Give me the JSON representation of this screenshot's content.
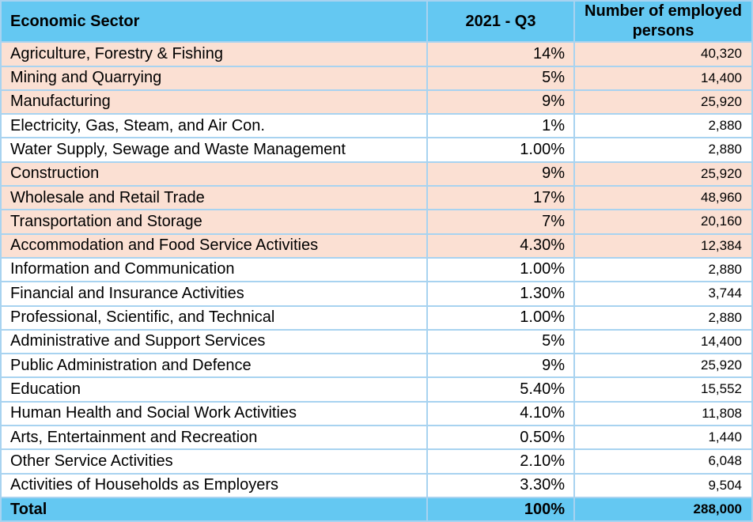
{
  "table": {
    "headers": [
      "Economic Sector",
      "2021 - Q3",
      "Number of employed persons"
    ],
    "rows": [
      {
        "sector": "Agriculture, Forestry & Fishing",
        "share": "14%",
        "employed": "40,320",
        "highlight": true,
        "highlight_count": true
      },
      {
        "sector": "Mining and Quarrying",
        "share": "5%",
        "employed": "14,400",
        "highlight": true,
        "highlight_count": true
      },
      {
        "sector": "Manufacturing",
        "share": "9%",
        "employed": "25,920",
        "highlight": true,
        "highlight_count": true
      },
      {
        "sector": "Electricity, Gas, Steam, and Air Con.",
        "share": "1%",
        "employed": "2,880",
        "highlight": false,
        "highlight_count": false
      },
      {
        "sector": "Water Supply, Sewage and Waste Management",
        "share": "1.00%",
        "employed": "2,880",
        "highlight": false,
        "highlight_count": false
      },
      {
        "sector": "Construction",
        "share": "9%",
        "employed": "25,920",
        "highlight": true,
        "highlight_count": true
      },
      {
        "sector": "Wholesale and Retail Trade",
        "share": "17%",
        "employed": "48,960",
        "highlight": true,
        "highlight_count": true
      },
      {
        "sector": "Transportation and Storage",
        "share": "7%",
        "employed": "20,160",
        "highlight": true,
        "highlight_count": true
      },
      {
        "sector": "Accommodation and Food Service Activities",
        "share": "4.30%",
        "employed": "12,384",
        "highlight": true,
        "highlight_count": true
      },
      {
        "sector": "Information and Communication",
        "share": "1.00%",
        "employed": "2,880",
        "highlight": false,
        "highlight_count": false
      },
      {
        "sector": "Financial and Insurance Activities",
        "share": "1.30%",
        "employed": "3,744",
        "highlight": false,
        "highlight_count": false
      },
      {
        "sector": "Professional, Scientific, and Technical",
        "share": "1.00%",
        "employed": "2,880",
        "highlight": false,
        "highlight_count": false
      },
      {
        "sector": "Administrative and Support Services",
        "share": "5%",
        "employed": "14,400",
        "highlight": false,
        "highlight_count": false
      },
      {
        "sector": "Public Administration and Defence",
        "share": "9%",
        "employed": "25,920",
        "highlight": false,
        "highlight_count": false
      },
      {
        "sector": "Education",
        "share": "5.40%",
        "employed": "15,552",
        "highlight": false,
        "highlight_count": false
      },
      {
        "sector": "Human Health and Social Work Activities",
        "share": "4.10%",
        "employed": "11,808",
        "highlight": false,
        "highlight_count": false
      },
      {
        "sector": "Arts, Entertainment and Recreation",
        "share": "0.50%",
        "employed": "1,440",
        "highlight": false,
        "highlight_count": false
      },
      {
        "sector": "Other Service Activities",
        "share": "2.10%",
        "employed": "6,048",
        "highlight": false,
        "highlight_count": false
      },
      {
        "sector": "Activities of Households as Employers",
        "share": "3.30%",
        "employed": "9,504",
        "highlight": false,
        "highlight_count": false
      }
    ],
    "total": {
      "sector": "Total",
      "share": "100%",
      "employed": "288,000"
    }
  },
  "colors": {
    "header_fill": "#64c8f2",
    "highlight_fill": "#fbe0d3",
    "grid_line": "#a8d3f0"
  }
}
